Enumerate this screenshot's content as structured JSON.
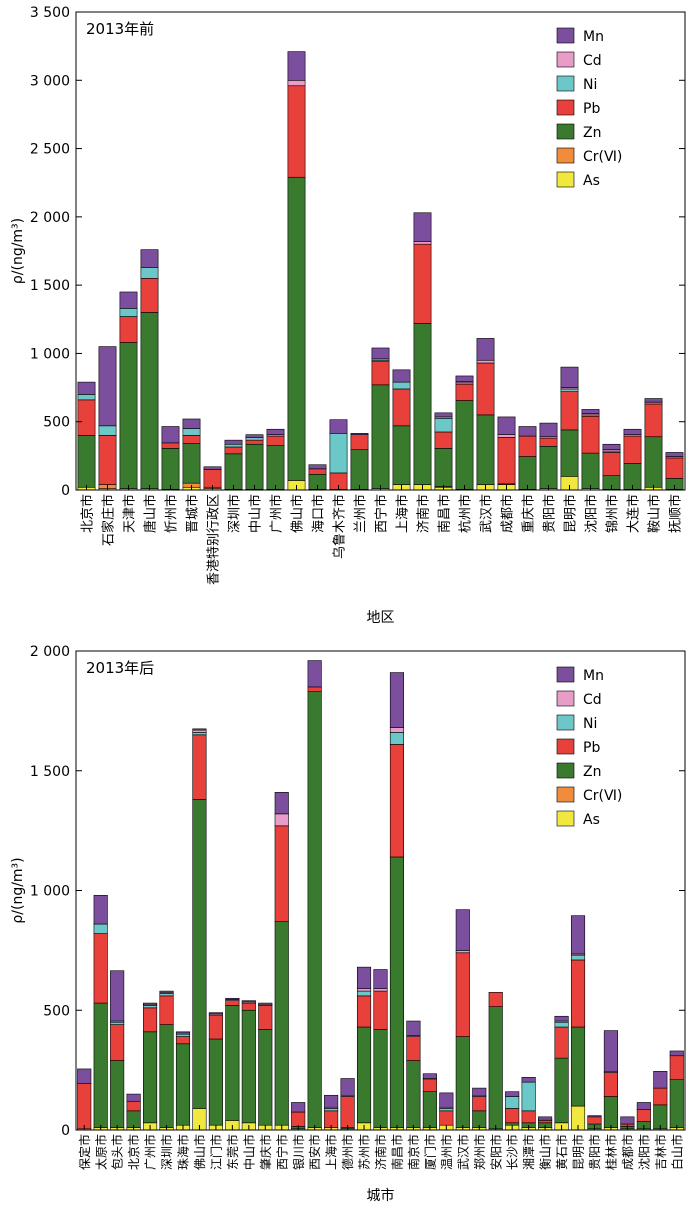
{
  "chart_data": [
    {
      "type": "bar",
      "stacked": true,
      "title": "2013年前",
      "xlabel": "地区",
      "ylabel": "ρ/(ng/m³)",
      "ylim": [
        0,
        3500
      ],
      "yticks": [
        0,
        500,
        1000,
        1500,
        2000,
        2500,
        3000,
        3500
      ],
      "ytick_labels": [
        "0",
        "500",
        "1 000",
        "1 500",
        "2 000",
        "2 500",
        "3 000",
        "3 500"
      ],
      "legend_position": "top-right",
      "categories": [
        "北京市",
        "石家庄市",
        "天津市",
        "唐山市",
        "忻州市",
        "晋城市",
        "香港特别行政区",
        "深圳市",
        "中山市",
        "广州市",
        "佛山市",
        "海口市",
        "乌鲁木齐市",
        "兰州市",
        "西宁市",
        "上海市",
        "济南市",
        "南昌市",
        "杭州市",
        "武汉市",
        "成都市",
        "重庆市",
        "贵阳市",
        "昆明市",
        "沈阳市",
        "锦州市",
        "大连市",
        "鞍山市",
        "抚顺市"
      ],
      "series": [
        {
          "name": "As",
          "color": "#f0e83c",
          "values": [
            20,
            10,
            10,
            10,
            5,
            20,
            10,
            5,
            5,
            5,
            70,
            5,
            5,
            5,
            10,
            40,
            40,
            20,
            5,
            40,
            40,
            5,
            10,
            100,
            10,
            5,
            5,
            20,
            5
          ]
        },
        {
          "name": "Cr(Ⅵ)",
          "color": "#f08c3c",
          "values": [
            0,
            30,
            0,
            0,
            0,
            30,
            10,
            0,
            0,
            0,
            0,
            0,
            0,
            0,
            0,
            0,
            0,
            5,
            0,
            0,
            5,
            0,
            0,
            0,
            0,
            0,
            0,
            0,
            0
          ]
        },
        {
          "name": "Zn",
          "color": "#3a7a2e",
          "values": [
            380,
            0,
            1070,
            1290,
            300,
            290,
            0,
            260,
            330,
            320,
            2220,
            110,
            0,
            290,
            760,
            430,
            1180,
            280,
            650,
            510,
            0,
            240,
            310,
            340,
            260,
            100,
            190,
            370,
            80
          ]
        },
        {
          "name": "Pb",
          "color": "#e8403a",
          "values": [
            260,
            360,
            190,
            250,
            40,
            60,
            130,
            50,
            30,
            70,
            670,
            40,
            120,
            110,
            170,
            270,
            580,
            120,
            120,
            380,
            340,
            150,
            60,
            280,
            270,
            170,
            200,
            240,
            150
          ]
        },
        {
          "name": "Ni",
          "color": "#6cc8c8",
          "values": [
            40,
            70,
            60,
            80,
            0,
            50,
            0,
            20,
            20,
            10,
            0,
            0,
            290,
            0,
            10,
            50,
            0,
            100,
            10,
            0,
            0,
            0,
            0,
            20,
            10,
            10,
            10,
            10,
            10
          ]
        },
        {
          "name": "Cd",
          "color": "#e89cc8",
          "values": [
            0,
            0,
            0,
            0,
            0,
            0,
            0,
            0,
            0,
            0,
            40,
            0,
            0,
            0,
            10,
            0,
            20,
            10,
            10,
            20,
            20,
            0,
            10,
            10,
            10,
            10,
            0,
            10,
            0
          ]
        },
        {
          "name": "Mn",
          "color": "#7b4e9e",
          "values": [
            90,
            580,
            120,
            130,
            120,
            70,
            20,
            30,
            20,
            40,
            210,
            30,
            100,
            10,
            80,
            90,
            210,
            30,
            40,
            160,
            130,
            70,
            100,
            150,
            30,
            40,
            40,
            20,
            30
          ]
        }
      ]
    },
    {
      "type": "bar",
      "stacked": true,
      "title": "2013年后",
      "xlabel": "城市",
      "ylabel": "ρ/(ng/m³)",
      "ylim": [
        0,
        2000
      ],
      "yticks": [
        0,
        500,
        1000,
        1500,
        2000
      ],
      "ytick_labels": [
        "0",
        "500",
        "1 000",
        "1 500",
        "2 000"
      ],
      "legend_position": "top-right",
      "categories": [
        "保定市",
        "太原市",
        "包头市",
        "北京市",
        "广州市",
        "深圳市",
        "珠海市",
        "佛山市",
        "江门市",
        "东莞市",
        "中山市",
        "肇庆市",
        "西宁市",
        "银川市",
        "西安市",
        "上海市",
        "德州市",
        "苏州市",
        "济南市",
        "南昌市",
        "南京市",
        "厦门市",
        "温州市",
        "武汉市",
        "郑州市",
        "安阳市",
        "长沙市",
        "湘潭市",
        "衡山市",
        "黄石市",
        "昆明市",
        "贵阳市",
        "桂林市",
        "成都市",
        "沈阳市",
        "吉林市",
        "白山市"
      ],
      "series": [
        {
          "name": "As",
          "color": "#f0e83c",
          "values": [
            5,
            10,
            10,
            10,
            30,
            10,
            20,
            90,
            20,
            40,
            30,
            20,
            20,
            5,
            10,
            10,
            5,
            30,
            10,
            10,
            10,
            10,
            20,
            10,
            10,
            5,
            20,
            10,
            10,
            30,
            100,
            5,
            10,
            5,
            5,
            5,
            10
          ]
        },
        {
          "name": "Cr(Ⅵ)",
          "color": "#f08c3c",
          "values": [
            0,
            0,
            0,
            0,
            0,
            0,
            0,
            0,
            0,
            0,
            0,
            0,
            0,
            0,
            0,
            0,
            0,
            0,
            0,
            0,
            0,
            0,
            0,
            0,
            0,
            0,
            0,
            0,
            0,
            0,
            0,
            0,
            0,
            0,
            0,
            0,
            0
          ]
        },
        {
          "name": "Zn",
          "color": "#3a7a2e",
          "values": [
            0,
            520,
            280,
            70,
            380,
            430,
            340,
            1290,
            360,
            480,
            470,
            400,
            850,
            10,
            1820,
            0,
            5,
            400,
            410,
            1130,
            280,
            150,
            0,
            380,
            70,
            510,
            10,
            20,
            20,
            270,
            330,
            20,
            130,
            10,
            30,
            100,
            200
          ]
        },
        {
          "name": "Pb",
          "color": "#e8403a",
          "values": [
            190,
            290,
            150,
            40,
            100,
            120,
            30,
            270,
            100,
            20,
            30,
            100,
            400,
            60,
            20,
            70,
            130,
            130,
            160,
            470,
            100,
            50,
            60,
            350,
            60,
            60,
            60,
            50,
            10,
            130,
            280,
            30,
            100,
            10,
            50,
            70,
            100
          ]
        },
        {
          "name": "Ni",
          "color": "#6cc8c8",
          "values": [
            0,
            40,
            10,
            0,
            10,
            10,
            10,
            10,
            0,
            0,
            0,
            0,
            0,
            0,
            0,
            10,
            0,
            20,
            0,
            50,
            0,
            0,
            10,
            0,
            0,
            0,
            50,
            120,
            0,
            20,
            20,
            0,
            0,
            0,
            0,
            0,
            0
          ]
        },
        {
          "name": "Cd",
          "color": "#e89cc8",
          "values": [
            0,
            0,
            5,
            0,
            5,
            5,
            5,
            10,
            5,
            5,
            5,
            5,
            50,
            0,
            0,
            5,
            5,
            10,
            10,
            20,
            5,
            5,
            5,
            10,
            5,
            0,
            0,
            0,
            5,
            5,
            5,
            0,
            5,
            0,
            0,
            0,
            0
          ]
        },
        {
          "name": "Mn",
          "color": "#7b4e9e",
          "values": [
            60,
            120,
            210,
            30,
            5,
            5,
            5,
            5,
            5,
            5,
            5,
            5,
            90,
            40,
            110,
            50,
            70,
            90,
            80,
            230,
            60,
            20,
            60,
            170,
            30,
            0,
            20,
            20,
            10,
            20,
            160,
            5,
            170,
            30,
            30,
            70,
            20
          ]
        }
      ]
    }
  ]
}
